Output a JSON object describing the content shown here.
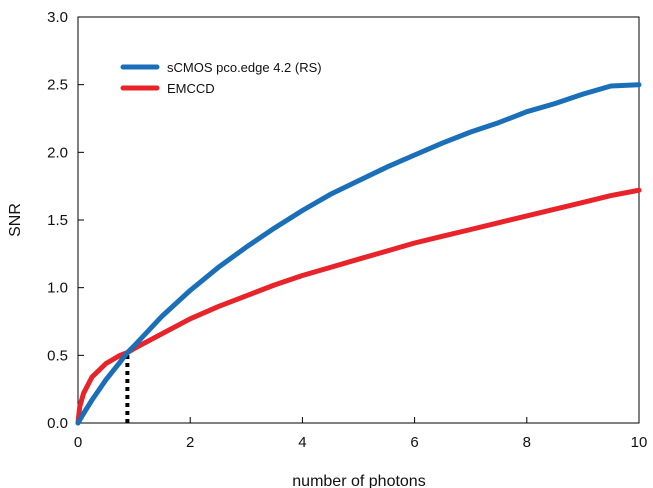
{
  "chart_data": {
    "type": "line",
    "xlabel": "number of photons",
    "ylabel": "SNR",
    "xlim": [
      0,
      10
    ],
    "ylim": [
      0,
      3.0
    ],
    "x_ticks": [
      "0",
      "2",
      "4",
      "6",
      "8",
      "10"
    ],
    "y_ticks": [
      "0.0",
      "0.5",
      "1.0",
      "1.5",
      "2.0",
      "2.5",
      "3.0"
    ],
    "grid": false,
    "legend_position": "top-left",
    "series": [
      {
        "name": "sCMOS pco.edge 4.2 (RS)",
        "color": "#1a6fb8",
        "x": [
          0,
          0.1,
          0.25,
          0.5,
          0.75,
          0.88,
          1,
          1.5,
          2,
          2.5,
          3,
          3.5,
          4,
          4.5,
          5,
          5.5,
          6,
          6.5,
          7,
          7.5,
          8,
          8.5,
          9,
          9.5,
          10
        ],
        "y": [
          0,
          0.07,
          0.17,
          0.32,
          0.45,
          0.52,
          0.57,
          0.79,
          0.98,
          1.15,
          1.3,
          1.44,
          1.57,
          1.69,
          1.79,
          1.89,
          1.98,
          2.07,
          2.15,
          2.22,
          2.3,
          2.36,
          2.43,
          2.49,
          2.5
        ]
      },
      {
        "name": "EMCCD",
        "color": "#e8232a",
        "x": [
          0,
          0.03,
          0.1,
          0.25,
          0.5,
          0.75,
          0.88,
          1,
          1.5,
          2,
          2.5,
          3,
          3.5,
          4,
          4.5,
          5,
          5.5,
          6,
          6.5,
          7,
          7.5,
          8,
          8.5,
          9,
          9.5,
          10
        ],
        "y": [
          0,
          0.12,
          0.22,
          0.34,
          0.44,
          0.5,
          0.52,
          0.55,
          0.66,
          0.77,
          0.86,
          0.94,
          1.02,
          1.09,
          1.15,
          1.21,
          1.27,
          1.33,
          1.38,
          1.43,
          1.48,
          1.53,
          1.58,
          1.63,
          1.68,
          1.72
        ]
      }
    ],
    "annotations": [
      {
        "type": "dotted-vertical-line",
        "x": 0.88,
        "y_from": 0,
        "y_to": 0.52,
        "color": "#000000"
      }
    ]
  }
}
